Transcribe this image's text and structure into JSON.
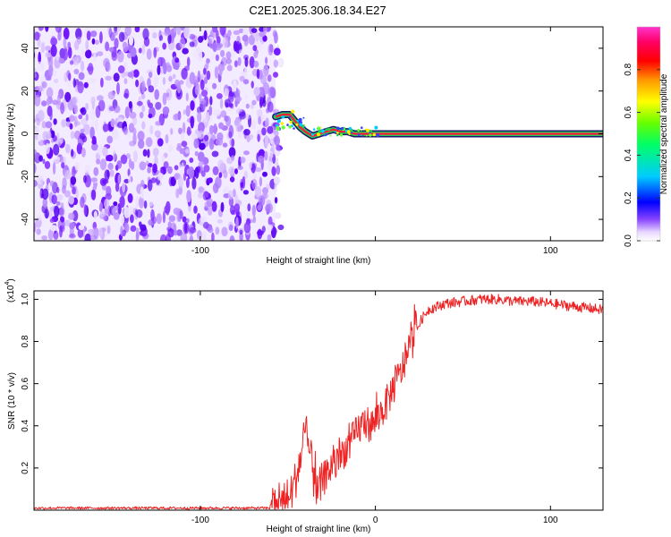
{
  "title": "C2E1.2025.306.18.34.E27",
  "chart_data": [
    {
      "type": "heatmap",
      "xlabel": "Height of straight line (km)",
      "ylabel": "Frequency (Hz)",
      "xlim": [
        -195,
        130
      ],
      "ylim": [
        -50,
        50
      ],
      "x_ticks": [
        -100,
        0,
        100
      ],
      "x_tick_labels": [
        "-100",
        "",
        "100"
      ],
      "y_ticks": [
        -40,
        -20,
        0,
        20,
        40
      ],
      "y_tick_labels": [
        "-40",
        "-20",
        "0",
        "20",
        "40"
      ],
      "noise_region_x": [
        -195,
        -57
      ],
      "ridge": [
        {
          "x": -57,
          "y": 8
        },
        {
          "x": -53,
          "y": 9
        },
        {
          "x": -49,
          "y": 9
        },
        {
          "x": -46,
          "y": 6
        },
        {
          "x": -43,
          "y": 3
        },
        {
          "x": -40,
          "y": 1
        },
        {
          "x": -36,
          "y": -1
        },
        {
          "x": -32,
          "y": 0
        },
        {
          "x": -28,
          "y": 1
        },
        {
          "x": -24,
          "y": 2
        },
        {
          "x": -20,
          "y": 1
        },
        {
          "x": -16,
          "y": 1
        },
        {
          "x": -12,
          "y": 0
        },
        {
          "x": -6,
          "y": 0
        },
        {
          "x": 0,
          "y": 0
        },
        {
          "x": 130,
          "y": 0
        }
      ],
      "colorbar": {
        "label": "Normalized spectral amplitude",
        "range": [
          0,
          1
        ],
        "ticks": [
          0.0,
          0.2,
          0.4,
          0.6,
          0.8
        ],
        "tick_labels": [
          "0.0",
          "0.2",
          "0.4",
          "0.6",
          "0.8"
        ],
        "colors": [
          "#ffffff",
          "#cc88ff",
          "#6600ff",
          "#0000ff",
          "#00ccff",
          "#00ff66",
          "#66ff00",
          "#ffff00",
          "#ff9900",
          "#ff0000",
          "#ff0066",
          "#ff33cc"
        ]
      }
    },
    {
      "type": "line",
      "xlabel": "Height of straight line (km)",
      "ylabel": "SNR (10 * v/v)",
      "multiplier_label": "(x10",
      "multiplier_exp": "4",
      "multiplier_close": ")",
      "xlim": [
        -195,
        130
      ],
      "ylim": [
        0,
        1.04
      ],
      "x_ticks": [
        -100,
        0,
        100
      ],
      "x_tick_labels": [
        "-100",
        "0",
        "100"
      ],
      "y_ticks": [
        0.2,
        0.4,
        0.6,
        0.8,
        1.0
      ],
      "y_tick_labels": [
        "0.2",
        "0.4",
        "0.6",
        "0.8",
        "1.0"
      ],
      "line_color": "#ee2222",
      "series": [
        {
          "x": [
            -195,
            -180,
            -160,
            -140,
            -120,
            -100,
            -80,
            -65,
            -60,
            -55,
            -50,
            -47,
            -44,
            -42,
            -40,
            -38,
            -36,
            -34,
            -30,
            -26,
            -22,
            -18,
            -14,
            -10,
            -6,
            -2,
            2,
            6,
            10,
            14,
            18,
            22,
            26,
            30,
            40,
            50,
            60,
            70,
            80,
            90,
            100,
            110,
            120,
            130
          ],
          "y": [
            0.01,
            0.01,
            0.01,
            0.01,
            0.01,
            0.01,
            0.01,
            0.01,
            0.01,
            0.02,
            0.06,
            0.1,
            0.2,
            0.28,
            0.35,
            0.3,
            0.2,
            0.06,
            0.14,
            0.2,
            0.22,
            0.28,
            0.32,
            0.38,
            0.42,
            0.4,
            0.45,
            0.5,
            0.58,
            0.64,
            0.73,
            0.82,
            0.9,
            0.95,
            0.98,
            0.99,
            1.0,
            1.0,
            0.99,
            0.99,
            0.98,
            0.97,
            0.96,
            0.95
          ]
        }
      ]
    }
  ]
}
